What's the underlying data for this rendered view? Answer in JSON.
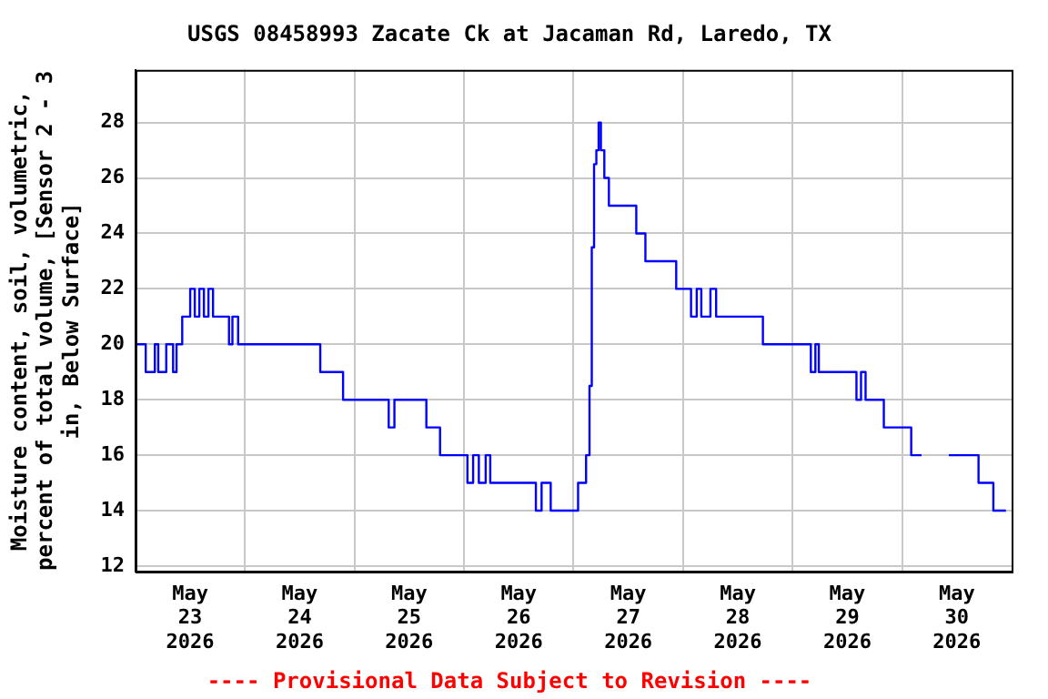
{
  "chart_data": {
    "type": "step",
    "title": "USGS 08458993 Zacate Ck at Jacaman Rd, Laredo, TX",
    "ylabel": "Moisture content, soil, volumetric, percent of total volume, [Sensor 2 - 3 in, Below Surface]",
    "annotations": [
      "---- Provisional Data Subject to Revision ----"
    ],
    "x": [
      "2026-05-23T00:00",
      "2026-05-23T02:15",
      "2026-05-23T04:15",
      "2026-05-23T05:00",
      "2026-05-23T06:45",
      "2026-05-23T08:15",
      "2026-05-23T09:00",
      "2026-05-23T10:15",
      "2026-05-23T12:00",
      "2026-05-23T13:00",
      "2026-05-23T14:00",
      "2026-05-23T15:00",
      "2026-05-23T16:00",
      "2026-05-23T17:00",
      "2026-05-23T20:30",
      "2026-05-23T21:15",
      "2026-05-23T22:30",
      "2026-05-24T16:30",
      "2026-05-24T21:30",
      "2026-05-25T07:30",
      "2026-05-25T08:45",
      "2026-05-25T15:45",
      "2026-05-25T18:45",
      "2026-05-26T00:45",
      "2026-05-26T02:00",
      "2026-05-26T03:15",
      "2026-05-26T04:45",
      "2026-05-26T05:45",
      "2026-05-26T15:45",
      "2026-05-26T17:00",
      "2026-05-26T19:00",
      "2026-05-27T01:00",
      "2026-05-27T02:45",
      "2026-05-27T03:30",
      "2026-05-27T04:00",
      "2026-05-27T04:30",
      "2026-05-27T05:00",
      "2026-05-27T05:30",
      "2026-05-27T06:00",
      "2026-05-27T06:45",
      "2026-05-27T07:45",
      "2026-05-27T13:45",
      "2026-05-27T15:45",
      "2026-05-27T22:30",
      "2026-05-28T01:45",
      "2026-05-28T03:00",
      "2026-05-28T04:00",
      "2026-05-28T06:00",
      "2026-05-28T07:15",
      "2026-05-28T17:30",
      "2026-05-29T04:00",
      "2026-05-29T05:00",
      "2026-05-29T05:45",
      "2026-05-29T14:00",
      "2026-05-29T15:00",
      "2026-05-29T16:00",
      "2026-05-29T20:00",
      "2026-05-30T02:00",
      "2026-05-30T04:15",
      "2026-05-30T04:30",
      "2026-05-30T10:15",
      "2026-05-30T16:45",
      "2026-05-30T20:00",
      "2026-05-30T22:45"
    ],
    "series": [
      {
        "color": "#0000ff",
        "values": [
          20,
          19,
          20,
          19,
          20,
          19,
          20,
          21,
          22,
          21,
          22,
          21,
          22,
          21,
          20,
          21,
          20,
          19,
          18,
          17,
          18,
          17,
          16,
          15,
          16,
          15,
          16,
          15,
          14,
          15,
          14,
          15,
          16,
          18.5,
          23.5,
          26.5,
          27,
          28,
          27,
          26,
          25,
          24,
          23,
          22,
          21,
          22,
          21,
          22,
          21,
          20,
          19,
          20,
          19,
          18,
          19,
          18,
          17,
          16,
          16,
          null,
          16,
          15,
          14,
          14
        ]
      }
    ],
    "xlim": [
      "2026-05-23T00:00",
      "2026-05-31T00:00"
    ],
    "xticks": [
      {
        "value": "2026-05-23T12:00",
        "label": "May 23 2026"
      },
      {
        "value": "2026-05-24T00:00",
        "label": null
      },
      {
        "value": "2026-05-24T12:00",
        "label": "May 24 2026"
      },
      {
        "value": "2026-05-25T00:00",
        "label": null
      },
      {
        "value": "2026-05-25T12:00",
        "label": "May 25 2026"
      },
      {
        "value": "2026-05-26T00:00",
        "label": null
      },
      {
        "value": "2026-05-26T12:00",
        "label": "May 26 2026"
      },
      {
        "value": "2026-05-27T00:00",
        "label": null
      },
      {
        "value": "2026-05-27T12:00",
        "label": "May 27 2026"
      },
      {
        "value": "2026-05-28T00:00",
        "label": null
      },
      {
        "value": "2026-05-28T12:00",
        "label": "May 28 2026"
      },
      {
        "value": "2026-05-29T00:00",
        "label": null
      },
      {
        "value": "2026-05-29T12:00",
        "label": "May 29 2026"
      },
      {
        "value": "2026-05-30T00:00",
        "label": null
      },
      {
        "value": "2026-05-30T12:00",
        "label": "May 30 2026"
      }
    ],
    "ylim": [
      11.8,
      29.9
    ],
    "yticks": [
      12,
      14,
      16,
      18,
      20,
      22,
      24,
      26,
      28
    ],
    "grid": true,
    "legend": false,
    "line_style": "solid",
    "marker": "none"
  }
}
